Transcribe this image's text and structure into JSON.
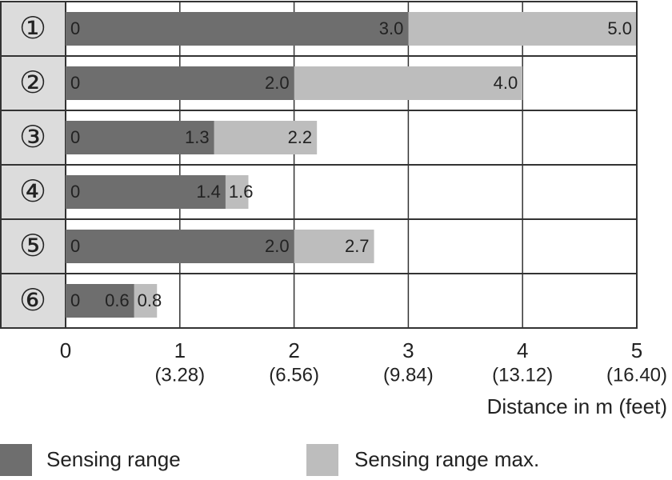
{
  "chart_data": {
    "type": "range-bar",
    "categories": [
      "①",
      "②",
      "③",
      "④",
      "⑤",
      "⑥"
    ],
    "series": [
      {
        "name": "Sensing range",
        "color": "#6e6e6e",
        "starts": [
          0,
          0,
          0,
          0,
          0,
          0
        ],
        "values": [
          3.0,
          2.0,
          1.3,
          1.4,
          2.0,
          0.6
        ],
        "value_labels": [
          "3.0",
          "2.0",
          "1.3",
          "1.4",
          "2.0",
          "0.6"
        ]
      },
      {
        "name": "Sensing range max.",
        "color": "#bdbdbd",
        "values": [
          5.0,
          4.0,
          2.2,
          1.6,
          2.7,
          0.8
        ],
        "value_labels": [
          "5.0",
          "4.0",
          "2.2",
          "1.6",
          "2.7",
          "0.8"
        ]
      }
    ],
    "xlim": [
      0,
      5
    ],
    "xticks": [
      0,
      1,
      2,
      3,
      4,
      5
    ],
    "xtick_sublabels": [
      null,
      "(3.28)",
      "(6.56)",
      "(9.84)",
      "(13.12)",
      "(16.40)"
    ],
    "xlabel": "Distance in m (feet)",
    "grid": true,
    "legend": "bottom"
  }
}
